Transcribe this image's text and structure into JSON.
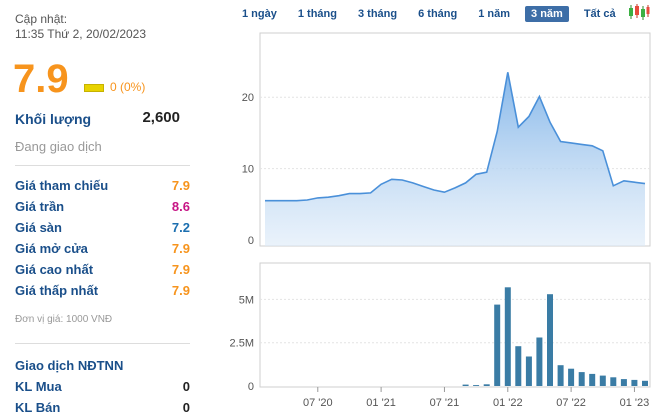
{
  "header": {
    "updated_label": "Cập nhật:",
    "updated_time": "11:35 Thứ 2, 20/02/2023"
  },
  "price": {
    "value": "7.9",
    "change": "0 (0%)",
    "color": "#f7941d"
  },
  "volume": {
    "label": "Khối lượng",
    "value": "2,600"
  },
  "status": "Đang giao dịch",
  "price_rows": [
    {
      "label": "Giá tham chiếu",
      "value": "7.9",
      "color": "#f7941d"
    },
    {
      "label": "Giá trần",
      "value": "8.6",
      "color": "#c71585"
    },
    {
      "label": "Giá sàn",
      "value": "7.2",
      "color": "#1c6fb0"
    },
    {
      "label": "Giá mở cửa",
      "value": "7.9",
      "color": "#f7941d"
    },
    {
      "label": "Giá cao nhất",
      "value": "7.9",
      "color": "#f7941d"
    },
    {
      "label": "Giá thấp nhất",
      "value": "7.9",
      "color": "#f7941d"
    }
  ],
  "unit_note": "Đơn vị giá: 1000 VNĐ",
  "foreign": {
    "title": "Giao dịch NĐTNN",
    "rows": [
      {
        "label": "KL Mua",
        "value": "0"
      },
      {
        "label": "KL Bán",
        "value": "0"
      }
    ]
  },
  "tabs": [
    "1 ngày",
    "1 tháng",
    "3 tháng",
    "6 tháng",
    "1 năm",
    "3 năm",
    "Tất cả"
  ],
  "active_tab": "3 năm",
  "icons": {
    "chart_type": "candlestick-icon"
  },
  "chart_data": [
    {
      "type": "area",
      "x": [
        "2020-02",
        "2020-03",
        "2020-04",
        "2020-05",
        "2020-06",
        "2020-07",
        "2020-08",
        "2020-09",
        "2020-10",
        "2020-11",
        "2020-12",
        "2021-01",
        "2021-02",
        "2021-03",
        "2021-04",
        "2021-05",
        "2021-06",
        "2021-07",
        "2021-08",
        "2021-09",
        "2021-10",
        "2021-11",
        "2021-12",
        "2022-01",
        "2022-02",
        "2022-03",
        "2022-04",
        "2022-05",
        "2022-06",
        "2022-07",
        "2022-08",
        "2022-09",
        "2022-10",
        "2022-11",
        "2022-12",
        "2023-01",
        "2023-02"
      ],
      "values": [
        5.5,
        5.5,
        5.5,
        5.5,
        5.6,
        5.9,
        6.0,
        6.2,
        6.5,
        6.5,
        6.6,
        7.8,
        8.5,
        8.4,
        8.0,
        7.5,
        7.0,
        6.7,
        7.3,
        8.0,
        9.2,
        9.5,
        15.2,
        23.5,
        15.8,
        17.3,
        20.1,
        16.5,
        13.8,
        13.6,
        13.4,
        13.2,
        12.5,
        7.6,
        8.3,
        8.1,
        7.9
      ],
      "y_ticks": [
        "0",
        "10",
        "20"
      ],
      "ylim": [
        0,
        29
      ],
      "color": "#4a90d9"
    },
    {
      "type": "bar",
      "x": [
        "2020-02",
        "2020-03",
        "2020-04",
        "2020-05",
        "2020-06",
        "2020-07",
        "2020-08",
        "2020-09",
        "2020-10",
        "2020-11",
        "2020-12",
        "2021-01",
        "2021-02",
        "2021-03",
        "2021-04",
        "2021-05",
        "2021-06",
        "2021-07",
        "2021-08",
        "2021-09",
        "2021-10",
        "2021-11",
        "2021-12",
        "2022-01",
        "2022-02",
        "2022-03",
        "2022-04",
        "2022-05",
        "2022-06",
        "2022-07",
        "2022-08",
        "2022-09",
        "2022-10",
        "2022-11",
        "2022-12",
        "2023-01",
        "2023-02"
      ],
      "values": [
        0,
        0,
        0,
        0,
        0,
        0,
        0,
        0,
        0,
        0,
        0,
        0,
        0,
        0,
        0,
        0,
        0,
        0,
        0,
        0.08,
        0.05,
        0.1,
        4.7,
        5.7,
        2.3,
        1.7,
        2.8,
        5.3,
        1.2,
        1.0,
        0.8,
        0.7,
        0.6,
        0.5,
        0.4,
        0.35,
        0.3
      ],
      "y_ticks": [
        "0",
        "2.5M",
        "5M"
      ],
      "ylim": [
        0,
        7.1
      ],
      "x_ticks": [
        "07 '20",
        "01 '21",
        "07 '21",
        "01 '22",
        "07 '22",
        "01 '23"
      ],
      "color": "#3a7ca5"
    }
  ]
}
